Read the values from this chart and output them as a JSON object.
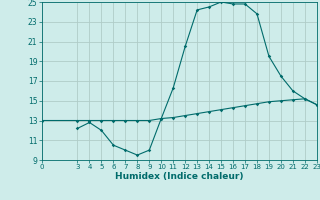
{
  "title": "",
  "xlabel": "Humidex (Indice chaleur)",
  "ylabel": "",
  "background_color": "#ceecea",
  "grid_color": "#b0ccc8",
  "line_color": "#006b6b",
  "xlim": [
    0,
    23
  ],
  "ylim": [
    9,
    25
  ],
  "yticks": [
    9,
    11,
    13,
    15,
    17,
    19,
    21,
    23,
    25
  ],
  "xticks": [
    0,
    3,
    4,
    5,
    6,
    7,
    8,
    9,
    10,
    11,
    12,
    13,
    14,
    15,
    16,
    17,
    18,
    19,
    20,
    21,
    22,
    23
  ],
  "line1_x": [
    0,
    3,
    4,
    5,
    6,
    7,
    8,
    9,
    10,
    11,
    12,
    13,
    14,
    15,
    16,
    17,
    18,
    19,
    20,
    21,
    22,
    23
  ],
  "line1_y": [
    13,
    13,
    13,
    13,
    13,
    13,
    13,
    13,
    13.2,
    13.3,
    13.5,
    13.7,
    13.9,
    14.1,
    14.3,
    14.5,
    14.7,
    14.9,
    15.0,
    15.1,
    15.2,
    14.6
  ],
  "line2_x": [
    3,
    4,
    5,
    6,
    7,
    8,
    9,
    10,
    11,
    12,
    13,
    14,
    15,
    16,
    17,
    18,
    19,
    20,
    21,
    22,
    23
  ],
  "line2_y": [
    12.2,
    12.8,
    12.0,
    10.5,
    10.0,
    9.5,
    10.0,
    13.2,
    16.3,
    20.5,
    24.2,
    24.5,
    25.0,
    24.8,
    24.8,
    23.8,
    19.5,
    17.5,
    16.0,
    15.2,
    14.6
  ]
}
